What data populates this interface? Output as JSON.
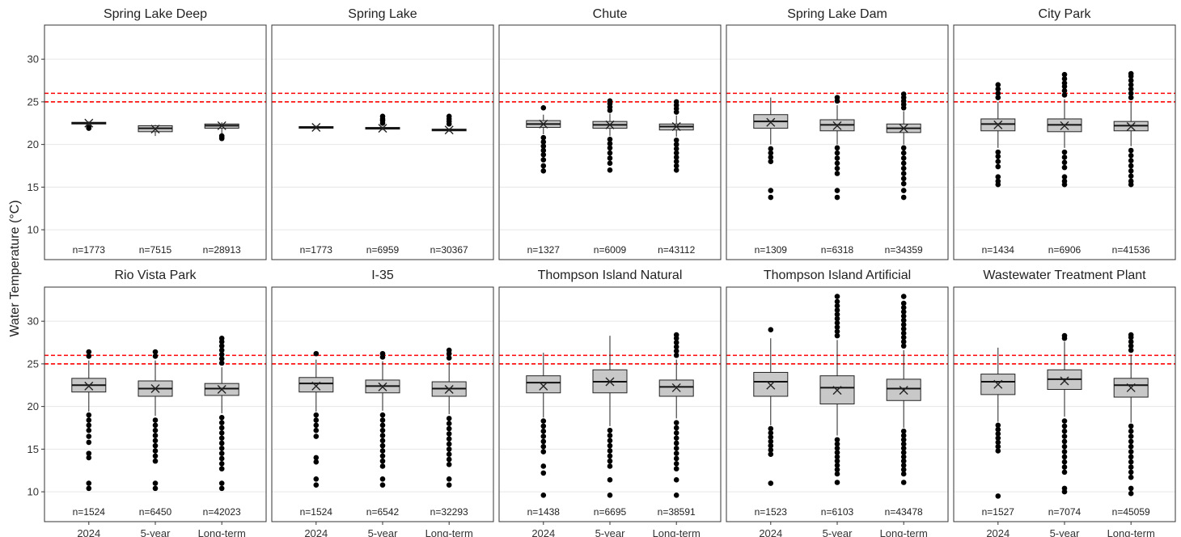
{
  "chart_data": {
    "type": "boxplot",
    "ylabel": "Water Temperature (°C)",
    "ylim": [
      6.5,
      34
    ],
    "yticks": [
      10,
      15,
      20,
      25,
      30
    ],
    "categories": [
      "2024",
      "5-year",
      "Long-term"
    ],
    "reference_lines": [
      25,
      26
    ],
    "reference_line_color": "#ff0000",
    "box_fill": "#c8c8c8",
    "grid": true,
    "panels": [
      {
        "title": "Spring Lake Deep",
        "n": [
          "n=1773",
          "n=7515",
          "n=28913"
        ],
        "boxes": [
          {
            "q1": 22.4,
            "median": 22.5,
            "q3": 22.6,
            "wlo": 22.2,
            "whi": 22.7,
            "mean": 22.5,
            "outliers": [
              22.0,
              21.9
            ]
          },
          {
            "q1": 21.5,
            "median": 21.9,
            "q3": 22.2,
            "wlo": 21.0,
            "whi": 22.3,
            "mean": 21.8,
            "outliers": []
          },
          {
            "q1": 21.9,
            "median": 22.2,
            "q3": 22.4,
            "wlo": 21.2,
            "whi": 22.6,
            "mean": 22.2,
            "outliers": [
              20.8,
              20.7,
              21.0
            ]
          }
        ]
      },
      {
        "title": "Spring Lake",
        "n": [
          "n=1773",
          "n=6959",
          "n=30367"
        ],
        "boxes": [
          {
            "q1": 21.9,
            "median": 22.0,
            "q3": 22.1,
            "wlo": 21.8,
            "whi": 22.2,
            "mean": 22.0,
            "outliers": []
          },
          {
            "q1": 21.8,
            "median": 21.9,
            "q3": 22.0,
            "wlo": 21.7,
            "whi": 22.1,
            "mean": 21.9,
            "outliers": [
              22.5,
              22.8,
              23.0,
              23.3
            ]
          },
          {
            "q1": 21.6,
            "median": 21.7,
            "q3": 21.8,
            "wlo": 21.5,
            "whi": 21.9,
            "mean": 21.7,
            "outliers": [
              22.4,
              22.7,
              23.0,
              23.3
            ]
          }
        ]
      },
      {
        "title": "Chute",
        "n": [
          "n=1327",
          "n=6009",
          "n=43112"
        ],
        "boxes": [
          {
            "q1": 22.0,
            "median": 22.4,
            "q3": 22.8,
            "wlo": 21.2,
            "whi": 23.5,
            "mean": 22.4,
            "outliers": [
              24.3,
              20.8,
              20.3,
              19.8,
              19.3,
              18.8,
              18.2,
              17.5,
              16.9
            ]
          },
          {
            "q1": 21.9,
            "median": 22.3,
            "q3": 22.7,
            "wlo": 21.0,
            "whi": 23.6,
            "mean": 22.3,
            "outliers": [
              24.0,
              24.4,
              24.8,
              25.1,
              20.6,
              20.1,
              19.6,
              19.0,
              18.4,
              17.8,
              17.0
            ]
          },
          {
            "q1": 21.7,
            "median": 22.1,
            "q3": 22.4,
            "wlo": 20.9,
            "whi": 23.4,
            "mean": 22.1,
            "outliers": [
              23.8,
              24.2,
              24.6,
              25.0,
              20.5,
              20.0,
              19.5,
              19.0,
              18.5,
              18.0,
              17.5,
              17.0
            ]
          }
        ]
      },
      {
        "title": "Spring Lake Dam",
        "n": [
          "n=1309",
          "n=6318",
          "n=34359"
        ],
        "boxes": [
          {
            "q1": 21.9,
            "median": 22.7,
            "q3": 23.5,
            "wlo": 20.0,
            "whi": 25.5,
            "mean": 22.6,
            "outliers": [
              19.5,
              19.0,
              18.5,
              18.0,
              14.6,
              13.8
            ]
          },
          {
            "q1": 21.6,
            "median": 22.3,
            "q3": 22.9,
            "wlo": 20.0,
            "whi": 24.6,
            "mean": 22.2,
            "outliers": [
              25.1,
              25.5,
              19.6,
              19.0,
              18.4,
              17.8,
              17.2,
              16.6,
              14.6,
              13.8
            ]
          },
          {
            "q1": 21.4,
            "median": 21.9,
            "q3": 22.4,
            "wlo": 20.0,
            "whi": 23.9,
            "mean": 21.9,
            "outliers": [
              24.3,
              24.7,
              25.1,
              25.5,
              25.9,
              19.6,
              19.0,
              18.4,
              17.8,
              17.2,
              16.6,
              16.0,
              15.4,
              14.6,
              13.8
            ]
          }
        ]
      },
      {
        "title": "City Park",
        "n": [
          "n=1434",
          "n=6906",
          "n=41536"
        ],
        "boxes": [
          {
            "q1": 21.6,
            "median": 22.4,
            "q3": 23.0,
            "wlo": 19.6,
            "whi": 25.0,
            "mean": 22.3,
            "outliers": [
              25.5,
              26.0,
              26.5,
              27.0,
              19.1,
              18.6,
              18.0,
              17.4,
              16.2,
              15.7,
              15.3
            ]
          },
          {
            "q1": 21.5,
            "median": 22.3,
            "q3": 23.0,
            "wlo": 19.6,
            "whi": 25.3,
            "mean": 22.2,
            "outliers": [
              25.8,
              26.3,
              26.8,
              27.2,
              27.7,
              28.2,
              19.1,
              18.5,
              17.9,
              17.3,
              16.2,
              15.7,
              15.3
            ]
          },
          {
            "q1": 21.6,
            "median": 22.2,
            "q3": 22.7,
            "wlo": 19.8,
            "whi": 25.0,
            "mean": 22.1,
            "outliers": [
              25.5,
              26.0,
              26.5,
              27.0,
              27.5,
              28.0,
              28.3,
              19.3,
              18.7,
              18.1,
              17.5,
              16.9,
              16.3,
              15.7,
              15.3
            ]
          }
        ]
      },
      {
        "title": "Rio Vista Park",
        "n": [
          "n=1524",
          "n=6450",
          "n=42023"
        ],
        "boxes": [
          {
            "q1": 21.7,
            "median": 22.5,
            "q3": 23.3,
            "wlo": 19.4,
            "whi": 25.4,
            "mean": 22.4,
            "outliers": [
              25.9,
              26.4,
              19.0,
              18.4,
              17.8,
              17.2,
              16.5,
              15.8,
              14.5,
              14.0,
              11.0,
              10.4
            ]
          },
          {
            "q1": 21.2,
            "median": 22.1,
            "q3": 23.0,
            "wlo": 18.9,
            "whi": 25.4,
            "mean": 22.1,
            "outliers": [
              25.9,
              26.4,
              18.4,
              17.8,
              17.2,
              16.6,
              16.0,
              15.4,
              14.8,
              14.2,
              13.6,
              11.0,
              10.4
            ]
          },
          {
            "q1": 21.3,
            "median": 22.1,
            "q3": 22.7,
            "wlo": 19.2,
            "whi": 24.6,
            "mean": 22.0,
            "outliers": [
              25.1,
              25.6,
              26.1,
              26.6,
              27.1,
              27.6,
              28.0,
              18.7,
              18.1,
              17.5,
              16.9,
              16.3,
              15.7,
              15.1,
              14.5,
              13.9,
              13.3,
              12.7,
              11.0,
              10.4
            ]
          }
        ]
      },
      {
        "title": "I-35",
        "n": [
          "n=1524",
          "n=6542",
          "n=32293"
        ],
        "boxes": [
          {
            "q1": 21.7,
            "median": 22.7,
            "q3": 23.4,
            "wlo": 19.4,
            "whi": 25.5,
            "mean": 22.4,
            "outliers": [
              26.2,
              19.0,
              18.4,
              17.8,
              17.2,
              16.5,
              14.0,
              13.5,
              11.5,
              10.8
            ]
          },
          {
            "q1": 21.6,
            "median": 22.4,
            "q3": 23.1,
            "wlo": 19.5,
            "whi": 25.3,
            "mean": 22.3,
            "outliers": [
              25.8,
              26.2,
              19.0,
              18.4,
              17.8,
              17.2,
              16.6,
              16.0,
              15.4,
              14.8,
              14.2,
              13.6,
              13.0,
              11.5,
              10.8
            ]
          },
          {
            "q1": 21.2,
            "median": 22.1,
            "q3": 22.9,
            "wlo": 19.1,
            "whi": 25.2,
            "mean": 22.0,
            "outliers": [
              25.7,
              26.2,
              26.6,
              18.6,
              18.0,
              17.4,
              16.8,
              16.2,
              15.6,
              15.0,
              14.4,
              13.8,
              13.2,
              11.5,
              10.8
            ]
          }
        ]
      },
      {
        "title": "Thompson Island Natural",
        "n": [
          "n=1438",
          "n=6695",
          "n=38591"
        ],
        "boxes": [
          {
            "q1": 21.6,
            "median": 22.8,
            "q3": 23.6,
            "wlo": 18.7,
            "whi": 26.3,
            "mean": 22.4,
            "outliers": [
              18.3,
              17.7,
              17.1,
              16.5,
              15.9,
              15.3,
              14.7,
              13.0,
              12.2,
              9.6
            ]
          },
          {
            "q1": 21.6,
            "median": 22.9,
            "q3": 24.3,
            "wlo": 17.7,
            "whi": 28.3,
            "mean": 22.9,
            "outliers": [
              17.2,
              16.6,
              16.0,
              15.4,
              14.8,
              14.2,
              13.6,
              13.0,
              11.4,
              9.6
            ]
          },
          {
            "q1": 21.2,
            "median": 22.3,
            "q3": 23.1,
            "wlo": 18.6,
            "whi": 25.5,
            "mean": 22.2,
            "outliers": [
              26.0,
              26.5,
              27.0,
              27.5,
              28.0,
              28.4,
              18.1,
              17.5,
              16.9,
              16.3,
              15.7,
              15.1,
              14.5,
              13.9,
              13.3,
              12.7,
              11.4,
              9.6
            ]
          }
        ]
      },
      {
        "title": "Thompson Island Artificial",
        "n": [
          "n=1523",
          "n=6103",
          "n=43478"
        ],
        "boxes": [
          {
            "q1": 21.2,
            "median": 22.9,
            "q3": 24.0,
            "wlo": 17.8,
            "whi": 28.0,
            "mean": 22.5,
            "outliers": [
              29.0,
              17.4,
              16.9,
              16.4,
              15.9,
              15.4,
              14.9,
              14.4,
              11.0
            ]
          },
          {
            "q1": 20.3,
            "median": 22.2,
            "q3": 23.6,
            "wlo": 16.6,
            "whi": 27.8,
            "mean": 21.9,
            "outliers": [
              28.3,
              28.8,
              29.3,
              29.8,
              30.3,
              30.8,
              31.3,
              31.8,
              32.3,
              32.9,
              16.1,
              15.6,
              15.1,
              14.6,
              14.1,
              13.6,
              13.1,
              12.6,
              12.1,
              11.1
            ]
          },
          {
            "q1": 20.7,
            "median": 22.1,
            "q3": 23.2,
            "wlo": 17.5,
            "whi": 26.6,
            "mean": 21.9,
            "outliers": [
              27.1,
              27.6,
              28.1,
              28.6,
              29.1,
              29.6,
              30.1,
              30.6,
              31.1,
              31.6,
              32.1,
              32.9,
              17.1,
              16.6,
              16.1,
              15.6,
              15.1,
              14.6,
              14.1,
              13.6,
              13.1,
              12.6,
              12.1,
              11.1
            ]
          }
        ]
      },
      {
        "title": "Wastewater Treatment Plant",
        "n": [
          "n=1527",
          "n=7074",
          "n=45059"
        ],
        "boxes": [
          {
            "q1": 21.4,
            "median": 22.9,
            "q3": 23.8,
            "wlo": 18.2,
            "whi": 26.9,
            "mean": 22.6,
            "outliers": [
              17.8,
              17.3,
              16.8,
              16.3,
              15.8,
              15.3,
              14.8,
              9.5
            ]
          },
          {
            "q1": 22.0,
            "median": 23.2,
            "q3": 24.3,
            "wlo": 18.8,
            "whi": 27.6,
            "mean": 23.0,
            "outliers": [
              28.0,
              28.3,
              18.3,
              17.7,
              17.1,
              16.5,
              15.9,
              15.3,
              14.7,
              14.1,
              13.5,
              12.9,
              12.3,
              10.4,
              10.0
            ]
          },
          {
            "q1": 21.1,
            "median": 22.5,
            "q3": 23.3,
            "wlo": 18.1,
            "whi": 26.1,
            "mean": 22.2,
            "outliers": [
              26.6,
              27.1,
              27.6,
              28.1,
              28.4,
              17.7,
              17.1,
              16.5,
              15.9,
              15.3,
              14.7,
              14.1,
              13.5,
              12.9,
              12.3,
              11.7,
              10.4,
              9.8
            ]
          }
        ]
      }
    ]
  }
}
